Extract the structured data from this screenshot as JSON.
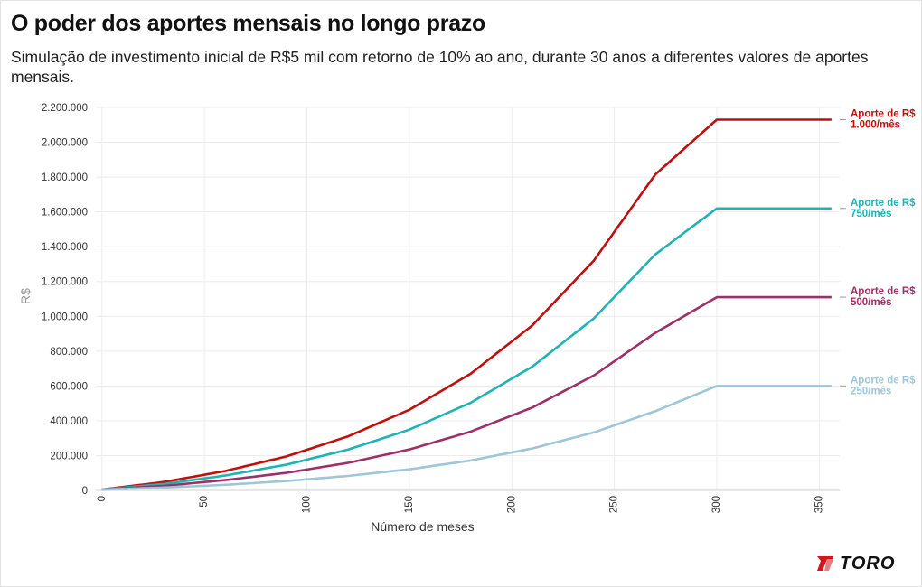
{
  "header": {
    "title": "O poder dos aportes mensais no longo prazo",
    "subtitle": "Simulação de investimento inicial de R$5 mil com retorno de 10% ao ano, durante 30 anos a diferentes valores de aportes mensais."
  },
  "brand": {
    "name": "TORO",
    "logo_icon": "toro-logo-icon",
    "color": "#d7141a"
  },
  "chart_data": {
    "type": "line",
    "xlabel": "Número de meses",
    "ylabel": "R$",
    "xlim": [
      -3,
      360
    ],
    "ylim": [
      0,
      2200000
    ],
    "x_ticks": [
      0,
      50,
      100,
      150,
      200,
      250,
      300,
      350
    ],
    "x_tick_labels": [
      "0",
      "50",
      "100",
      "150",
      "200",
      "250",
      "300",
      "350"
    ],
    "y_ticks": [
      0,
      200000,
      400000,
      600000,
      800000,
      1000000,
      1200000,
      1400000,
      1600000,
      1800000,
      2000000,
      2200000
    ],
    "y_tick_labels": [
      "0",
      "200.000",
      "400.000",
      "600.000",
      "800.000",
      "1.000.000",
      "1.200.000",
      "1.400.000",
      "1.600.000",
      "1.800.000",
      "2.000.000",
      "2.200.000"
    ],
    "grid": true,
    "legend": "end-of-line labels",
    "x": [
      0,
      30,
      60,
      90,
      120,
      150,
      180,
      210,
      240,
      270,
      300,
      330,
      360
    ],
    "series": [
      {
        "label_line1": "Aporte de R$",
        "label_line2": "1.000/mês",
        "color": "#c00f0c",
        "values": [
          5000,
          48000,
          111000,
          195000,
          310000,
          463000,
          671000,
          948000,
          1320000,
          1815000,
          2130000,
          2130000,
          2130000
        ]
      },
      {
        "label_line1": "Aporte de R$",
        "label_line2": "750/mês",
        "color": "#1fb3b5",
        "values": [
          5000,
          37000,
          85000,
          148000,
          234000,
          349000,
          504000,
          711000,
          988000,
          1356000,
          1620000,
          1620000,
          1620000
        ]
      },
      {
        "label_line1": "Aporte de R$",
        "label_line2": "500/mês",
        "color": "#9b3168",
        "values": [
          5000,
          26000,
          59000,
          101000,
          158000,
          235000,
          338000,
          476000,
          660000,
          905000,
          1110000,
          1110000,
          1110000
        ]
      },
      {
        "label_line1": "Aporte de R$",
        "label_line2": "250/mês",
        "color": "#9fc6d8",
        "values": [
          5000,
          16000,
          32000,
          54000,
          83000,
          121000,
          172000,
          241000,
          333000,
          455000,
          600000,
          600000,
          600000
        ]
      }
    ]
  }
}
